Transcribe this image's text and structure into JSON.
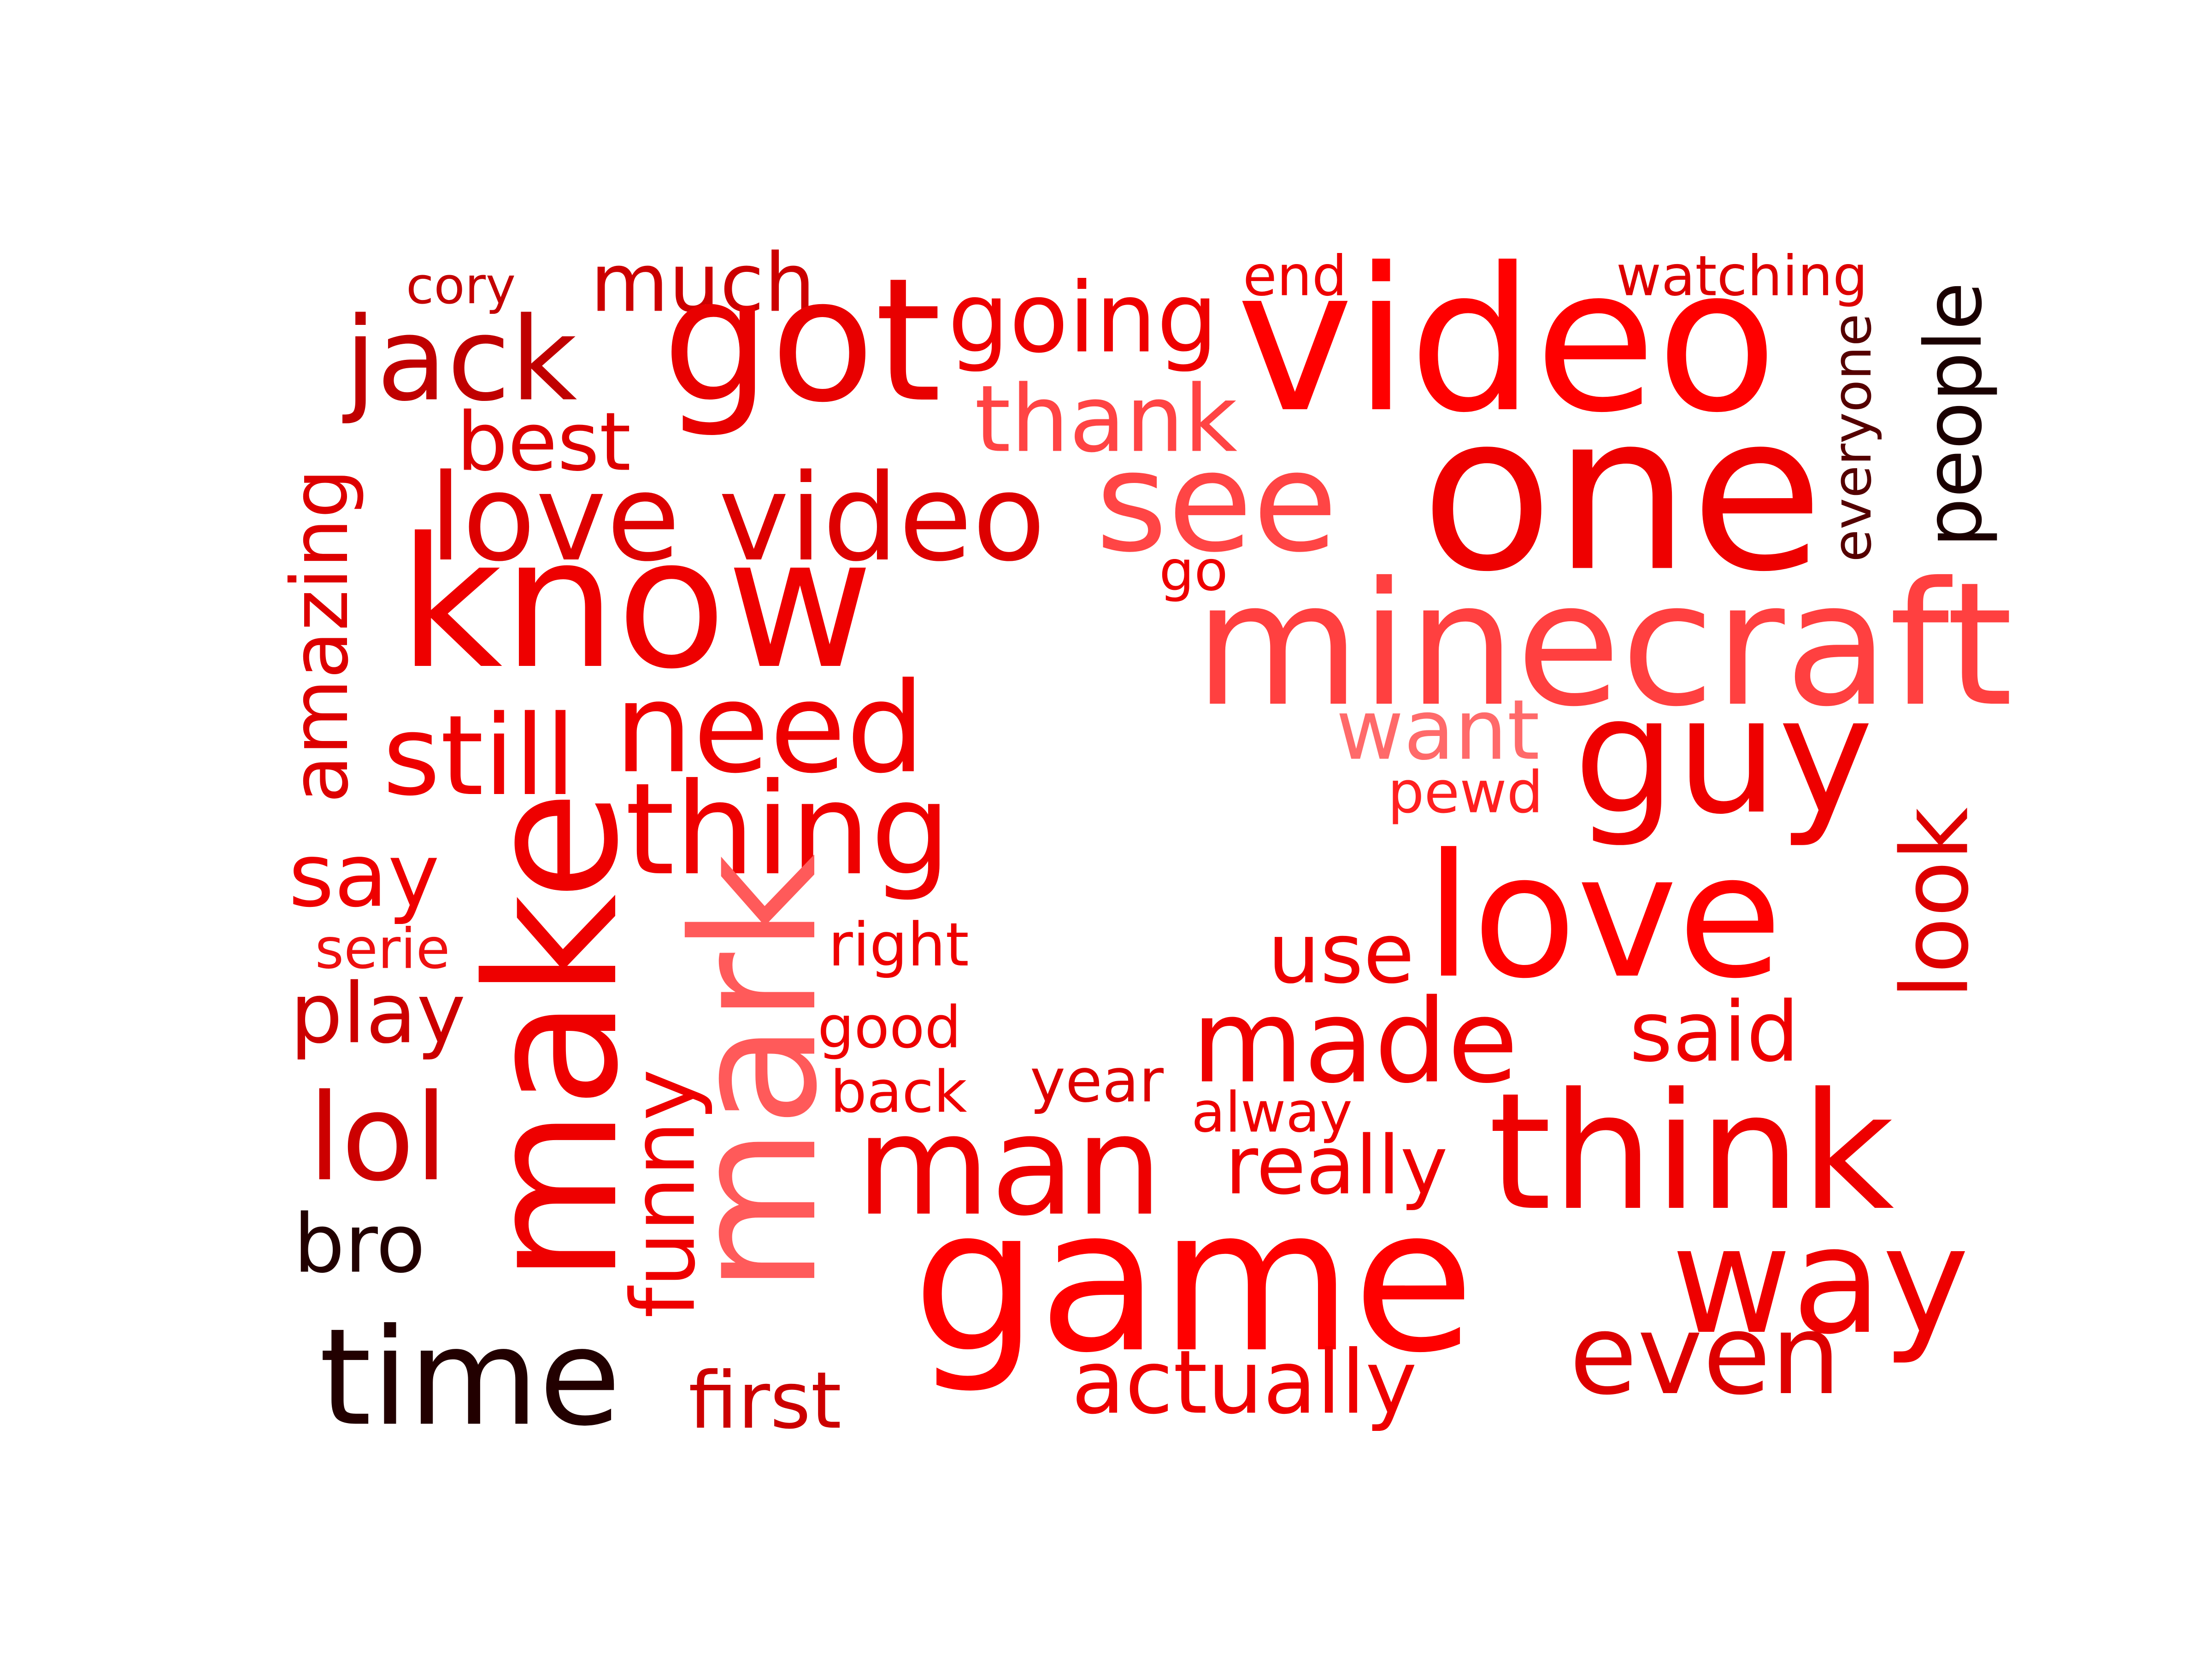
{
  "words": [
    {
      "text": "cory",
      "color": "#c40000",
      "rotate": false
    },
    {
      "text": "much",
      "color": "#cc0000",
      "rotate": false
    },
    {
      "text": "jack",
      "color": "#c00000",
      "rotate": false
    },
    {
      "text": "got",
      "color": "#e80000",
      "rotate": false
    },
    {
      "text": "going",
      "color": "#ee0000",
      "rotate": false
    },
    {
      "text": "end",
      "color": "#ee0000",
      "rotate": false
    },
    {
      "text": "video",
      "color": "#ff0000",
      "rotate": false
    },
    {
      "text": "watching",
      "color": "#dd0000",
      "rotate": false
    },
    {
      "text": "people",
      "color": "#1a0000",
      "rotate": true
    },
    {
      "text": "everyone",
      "color": "#550000",
      "rotate": true
    },
    {
      "text": "thank",
      "color": "#ff4444",
      "rotate": false
    },
    {
      "text": "best",
      "color": "#dd0000",
      "rotate": false
    },
    {
      "text": "love video",
      "color": "#dd0000",
      "rotate": false
    },
    {
      "text": "see",
      "color": "#ff4545",
      "rotate": false
    },
    {
      "text": "one",
      "color": "#ee0000",
      "rotate": false
    },
    {
      "text": "amazing",
      "color": "#dd0000",
      "rotate": true
    },
    {
      "text": "know",
      "color": "#ee0000",
      "rotate": false
    },
    {
      "text": "go",
      "color": "#ee0000",
      "rotate": false
    },
    {
      "text": "minecraft",
      "color": "#ff4040",
      "rotate": false
    },
    {
      "text": "still",
      "color": "#ee0000",
      "rotate": false
    },
    {
      "text": "need",
      "color": "#ee0000",
      "rotate": false
    },
    {
      "text": "want",
      "color": "#ff6a6a",
      "rotate": false
    },
    {
      "text": "guy",
      "color": "#ee0000",
      "rotate": false
    },
    {
      "text": "pewd",
      "color": "#ff2020",
      "rotate": false
    },
    {
      "text": "thing",
      "color": "#ee0000",
      "rotate": false
    },
    {
      "text": "make",
      "color": "#ee0000",
      "rotate": true
    },
    {
      "text": "say",
      "color": "#ee0000",
      "rotate": false
    },
    {
      "text": "love",
      "color": "#ff0000",
      "rotate": false
    },
    {
      "text": "look",
      "color": "#dd0000",
      "rotate": true
    },
    {
      "text": "serie",
      "color": "#ee1010",
      "rotate": false
    },
    {
      "text": "mark",
      "color": "#ff5a5a",
      "rotate": true
    },
    {
      "text": "right",
      "color": "#ee0000",
      "rotate": false
    },
    {
      "text": "use",
      "color": "#ee0000",
      "rotate": false
    },
    {
      "text": "play",
      "color": "#cc0000",
      "rotate": false
    },
    {
      "text": "good",
      "color": "#ee0000",
      "rotate": false
    },
    {
      "text": "made",
      "color": "#ee0000",
      "rotate": false
    },
    {
      "text": "said",
      "color": "#ee0000",
      "rotate": false
    },
    {
      "text": "funny",
      "color": "#ee0000",
      "rotate": true
    },
    {
      "text": "year",
      "color": "#dd0000",
      "rotate": false
    },
    {
      "text": "back",
      "color": "#ee0000",
      "rotate": false
    },
    {
      "text": "lol",
      "color": "#cc0000",
      "rotate": false
    },
    {
      "text": "alway",
      "color": "#ee0000",
      "rotate": false
    },
    {
      "text": "man",
      "color": "#ee0000",
      "rotate": false
    },
    {
      "text": "really",
      "color": "#ee0000",
      "rotate": false
    },
    {
      "text": "think",
      "color": "#ee0000",
      "rotate": false
    },
    {
      "text": "bro",
      "color": "#220000",
      "rotate": false
    },
    {
      "text": "game",
      "color": "#ff0000",
      "rotate": false
    },
    {
      "text": "way",
      "color": "#ee0000",
      "rotate": false
    },
    {
      "text": "time",
      "color": "#220000",
      "rotate": false
    },
    {
      "text": "actually",
      "color": "#ee0000",
      "rotate": false
    },
    {
      "text": "even",
      "color": "#dd0000",
      "rotate": false
    },
    {
      "text": "first",
      "color": "#cc0000",
      "rotate": false
    }
  ]
}
